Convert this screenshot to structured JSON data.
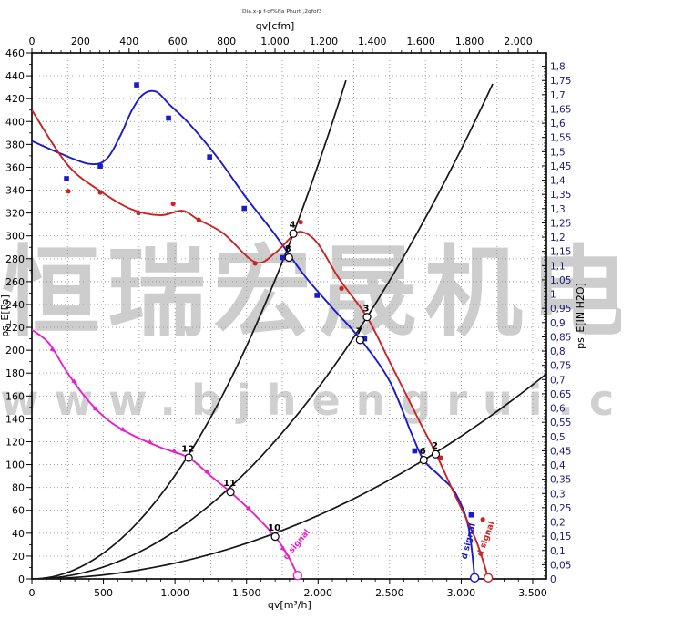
{
  "header": {
    "footnote": "Dia.x-p f-qf%fJa Phurt ,2qfof3"
  },
  "watermark": {
    "line1": "恒瑞宏晟机电",
    "line2": "www.bjhengrui.c"
  },
  "colors": {
    "blue_curve": "#1a1acd",
    "red_curve": "#cc2222",
    "magenta_curve": "#e620cc",
    "system_curve": "#161616",
    "grid": "#969696",
    "axis_box": "#000000",
    "right_tick_text": "#1b1b70",
    "tick_text": "#000000"
  },
  "chart_data": {
    "type": "line",
    "title": "",
    "grid": "dotted, horizontal every 20 Pa, vertical every 250 m3/h",
    "legend_position": "none",
    "axes": {
      "left": {
        "title": "ps_E[Pa]",
        "min": 0,
        "max": 460,
        "step": 20,
        "labels": [
          "460",
          "440",
          "420",
          "400",
          "380",
          "360",
          "340",
          "320",
          "300",
          "280",
          "260",
          "240",
          "220",
          "200",
          "180",
          "160",
          "140",
          "120",
          "100",
          "80",
          "60",
          "40",
          "20",
          "0"
        ]
      },
      "right": {
        "title": "ps_E[IN H2O]",
        "min": 0,
        "max": 1.8,
        "step": 0.05,
        "labels": [
          "1,8",
          "1,75",
          "1,7",
          "1,65",
          "1,6",
          "1,55",
          "1,5",
          "1,45",
          "1,4",
          "1,35",
          "1,3",
          "1,25",
          "1,2",
          "1,15",
          "1,1",
          "1,05",
          "1",
          "0,95",
          "0,9",
          "0,85",
          "0,8",
          "0,75",
          "0,7",
          "0,65",
          "0,6",
          "0,55",
          "0,5",
          "0,45",
          "0,4",
          "0,35",
          "0,3",
          "0,25",
          "0,2",
          "0,15",
          "0,1",
          "0,05",
          "0"
        ]
      },
      "top": {
        "title": "qv[cfm]",
        "min": 0,
        "max": 2000,
        "step": 200,
        "labels": [
          "0",
          "200",
          "400",
          "600",
          "800",
          "1.000",
          "1.200",
          "1.400",
          "1.600",
          "1.800",
          "2.000"
        ]
      },
      "bottom": {
        "title": "qv[m³/h]",
        "min": 0,
        "max": 3500,
        "step": 500,
        "labels": [
          "0",
          "500",
          "1.000",
          "1.500",
          "2.000",
          "2.500",
          "3.000",
          "3.500"
        ]
      }
    },
    "series": [
      {
        "name": "fan-curve-blue",
        "color": "#1a1acd",
        "marker": "square",
        "points": [
          [
            0,
            383
          ],
          [
            200,
            372
          ],
          [
            400,
            363
          ],
          [
            520,
            367
          ],
          [
            620,
            388
          ],
          [
            700,
            410
          ],
          [
            780,
            424
          ],
          [
            870,
            426
          ],
          [
            960,
            415
          ],
          [
            1100,
            398
          ],
          [
            1300,
            368
          ],
          [
            1500,
            333
          ],
          [
            1700,
            301
          ],
          [
            1900,
            266
          ],
          [
            2100,
            237
          ],
          [
            2300,
            209
          ],
          [
            2500,
            173
          ],
          [
            2650,
            128
          ],
          [
            2738,
            104
          ],
          [
            2850,
            90
          ],
          [
            2960,
            75
          ],
          [
            3050,
            46
          ],
          [
            3094,
            2
          ]
        ],
        "marker_points": [
          [
            242,
            350
          ],
          [
            478,
            361
          ],
          [
            732,
            432
          ],
          [
            955,
            403
          ],
          [
            1242,
            369
          ],
          [
            1484,
            324
          ],
          [
            1751,
            281
          ],
          [
            1993,
            248
          ],
          [
            2325,
            210
          ],
          [
            2675,
            112
          ],
          [
            3070,
            56
          ]
        ],
        "operating_points": [
          {
            "label": "8",
            "qv": 1796,
            "p": 281
          },
          {
            "label": "7",
            "qv": 2293,
            "p": 209
          },
          {
            "label": "6",
            "qv": 2738,
            "p": 104
          }
        ],
        "end_point": [
          3094,
          1
        ],
        "end_label": "d signal"
      },
      {
        "name": "fan-curve-red",
        "color": "#cc2222",
        "marker": "dot",
        "points": [
          [
            0,
            410
          ],
          [
            250,
            362
          ],
          [
            480,
            339
          ],
          [
            700,
            323
          ],
          [
            900,
            318
          ],
          [
            1050,
            322
          ],
          [
            1166,
            314
          ],
          [
            1340,
            302
          ],
          [
            1560,
            277
          ],
          [
            1700,
            285
          ],
          [
            1830,
            301
          ],
          [
            1900,
            303
          ],
          [
            2000,
            293
          ],
          [
            2150,
            262
          ],
          [
            2342,
            229
          ],
          [
            2500,
            190
          ],
          [
            2700,
            140
          ],
          [
            2822,
            110
          ],
          [
            2950,
            75
          ],
          [
            3100,
            35
          ],
          [
            3189,
            1
          ]
        ],
        "marker_points": [
          [
            255,
            339
          ],
          [
            478,
            338
          ],
          [
            745,
            320
          ],
          [
            987,
            328
          ],
          [
            1166,
            314
          ],
          [
            1560,
            276
          ],
          [
            1878,
            312
          ],
          [
            2164,
            254
          ],
          [
            2858,
            106
          ],
          [
            3151,
            52
          ]
        ],
        "operating_points": [
          {
            "label": "4",
            "qv": 1827,
            "p": 302
          },
          {
            "label": "3",
            "qv": 2342,
            "p": 229
          },
          {
            "label": "2",
            "qv": 2822,
            "p": 109
          }
        ],
        "end_point": [
          3189,
          1
        ],
        "end_label": "d signal"
      },
      {
        "name": "fan-curve-magenta",
        "color": "#e620cc",
        "marker": "triangle",
        "points": [
          [
            0,
            218
          ],
          [
            120,
            206
          ],
          [
            250,
            180
          ],
          [
            400,
            155
          ],
          [
            541,
            138
          ],
          [
            700,
            126
          ],
          [
            900,
            115
          ],
          [
            1096,
            106
          ],
          [
            1250,
            90
          ],
          [
            1388,
            76
          ],
          [
            1550,
            57
          ],
          [
            1700,
            37
          ],
          [
            1790,
            20
          ],
          [
            1857,
            3
          ]
        ],
        "marker_points": [
          [
            150,
            200
          ],
          [
            300,
            172
          ],
          [
            450,
            148
          ],
          [
            640,
            130
          ],
          [
            830,
            119
          ],
          [
            1000,
            111
          ],
          [
            1230,
            93
          ],
          [
            1520,
            61
          ],
          [
            1760,
            26
          ]
        ],
        "operating_points": [
          {
            "label": "12",
            "qv": 1096,
            "p": 106
          },
          {
            "label": "11",
            "qv": 1388,
            "p": 76
          },
          {
            "label": "10",
            "qv": 1700,
            "p": 37
          }
        ],
        "end_point": [
          1857,
          3
        ],
        "end_label": "d signal"
      }
    ],
    "system_curves": [
      {
        "name": "system-curve-steep",
        "k": 9.05e-05,
        "qv_max": 2195
      },
      {
        "name": "system-curve-middle",
        "k": 4.175e-05,
        "qv_max": 3220
      },
      {
        "name": "system-curve-shallow",
        "k": 1.387e-05,
        "qv_max": 3600
      }
    ],
    "unit_conversion": {
      "pa_per_in_h2o": 249.089,
      "m3h_per_cfm": 1.699
    }
  }
}
